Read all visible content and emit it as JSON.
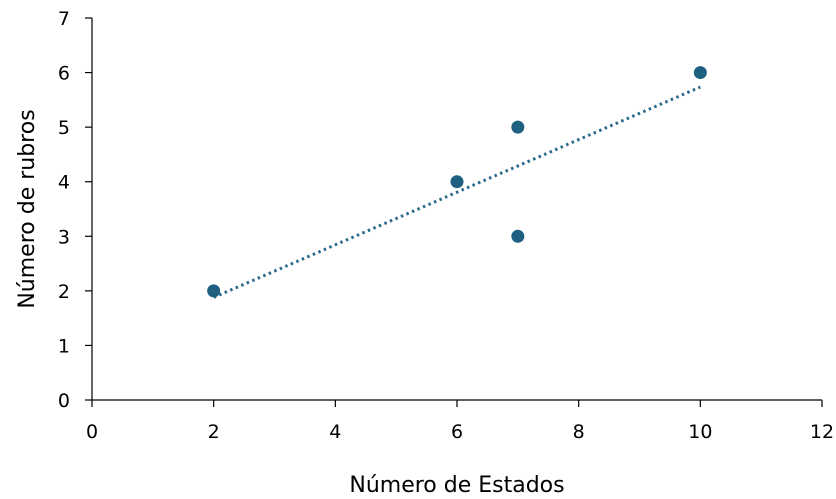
{
  "chart_data": {
    "type": "scatter",
    "xlabel": "Número de Estados",
    "ylabel": "Número de rubros",
    "xlim": [
      0,
      12
    ],
    "ylim": [
      0,
      7
    ],
    "xticks": [
      0,
      2,
      4,
      6,
      8,
      10,
      12
    ],
    "yticks": [
      0,
      1,
      2,
      3,
      4,
      5,
      6,
      7
    ],
    "grid": false,
    "series": [
      {
        "points": [
          {
            "x": 2,
            "y": 2
          },
          {
            "x": 6,
            "y": 4
          },
          {
            "x": 7,
            "y": 5
          },
          {
            "x": 7,
            "y": 3
          },
          {
            "x": 10,
            "y": 6
          }
        ],
        "marker_color": "#1f5f7f"
      }
    ],
    "trendline": {
      "type": "linear",
      "style": "dotted",
      "color": "#2a6a8a",
      "x_start": 2,
      "x_end": 10
    }
  }
}
